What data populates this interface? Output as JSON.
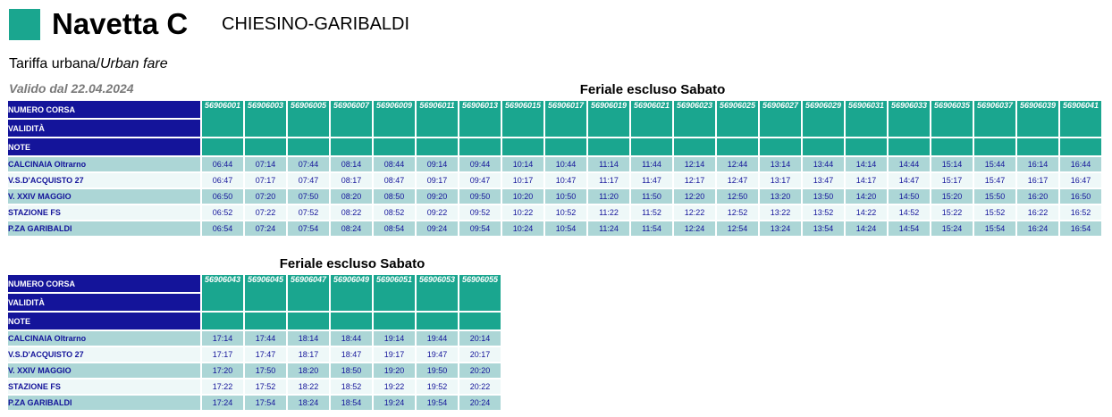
{
  "header": {
    "title": "Navetta C",
    "route": "CHIESINO-GARIBALDI",
    "fare_it": "Tariffa urbana/",
    "fare_en": "Urban fare",
    "validity": "Valido dal 22.04.2024",
    "logo_color": "#1aa68f"
  },
  "labels": {
    "trip_number": "NUMERO CORSA",
    "validity": "VALIDITÀ",
    "notes": "NOTE"
  },
  "colors": {
    "header_blue": "#14149a",
    "teal": "#1aa68f",
    "row_a": "#acd6d6",
    "row_b": "#eef8f8"
  },
  "tables": [
    {
      "day_type": "Feriale escluso Sabato",
      "trips": [
        "56906001",
        "56906003",
        "56906005",
        "56906007",
        "56906009",
        "56906011",
        "56906013",
        "56906015",
        "56906017",
        "56906019",
        "56906021",
        "56906023",
        "56906025",
        "56906027",
        "56906029",
        "56906031",
        "56906033",
        "56906035",
        "56906037",
        "56906039",
        "56906041"
      ],
      "stops": [
        {
          "name": "CALCINAIA Oltrarno",
          "times": [
            "06:44",
            "07:14",
            "07:44",
            "08:14",
            "08:44",
            "09:14",
            "09:44",
            "10:14",
            "10:44",
            "11:14",
            "11:44",
            "12:14",
            "12:44",
            "13:14",
            "13:44",
            "14:14",
            "14:44",
            "15:14",
            "15:44",
            "16:14",
            "16:44"
          ]
        },
        {
          "name": "V.S.D'ACQUISTO 27",
          "times": [
            "06:47",
            "07:17",
            "07:47",
            "08:17",
            "08:47",
            "09:17",
            "09:47",
            "10:17",
            "10:47",
            "11:17",
            "11:47",
            "12:17",
            "12:47",
            "13:17",
            "13:47",
            "14:17",
            "14:47",
            "15:17",
            "15:47",
            "16:17",
            "16:47"
          ]
        },
        {
          "name": "V. XXIV MAGGIO",
          "times": [
            "06:50",
            "07:20",
            "07:50",
            "08:20",
            "08:50",
            "09:20",
            "09:50",
            "10:20",
            "10:50",
            "11:20",
            "11:50",
            "12:20",
            "12:50",
            "13:20",
            "13:50",
            "14:20",
            "14:50",
            "15:20",
            "15:50",
            "16:20",
            "16:50"
          ]
        },
        {
          "name": "STAZIONE FS",
          "times": [
            "06:52",
            "07:22",
            "07:52",
            "08:22",
            "08:52",
            "09:22",
            "09:52",
            "10:22",
            "10:52",
            "11:22",
            "11:52",
            "12:22",
            "12:52",
            "13:22",
            "13:52",
            "14:22",
            "14:52",
            "15:22",
            "15:52",
            "16:22",
            "16:52"
          ]
        },
        {
          "name": "P.ZA GARIBALDI",
          "times": [
            "06:54",
            "07:24",
            "07:54",
            "08:24",
            "08:54",
            "09:24",
            "09:54",
            "10:24",
            "10:54",
            "11:24",
            "11:54",
            "12:24",
            "12:54",
            "13:24",
            "13:54",
            "14:24",
            "14:54",
            "15:24",
            "15:54",
            "16:24",
            "16:54"
          ]
        }
      ]
    },
    {
      "day_type": "Feriale escluso Sabato",
      "trips": [
        "56906043",
        "56906045",
        "56906047",
        "56906049",
        "56906051",
        "56906053",
        "56906055"
      ],
      "stops": [
        {
          "name": "CALCINAIA Oltrarno",
          "times": [
            "17:14",
            "17:44",
            "18:14",
            "18:44",
            "19:14",
            "19:44",
            "20:14"
          ]
        },
        {
          "name": "V.S.D'ACQUISTO 27",
          "times": [
            "17:17",
            "17:47",
            "18:17",
            "18:47",
            "19:17",
            "19:47",
            "20:17"
          ]
        },
        {
          "name": "V. XXIV MAGGIO",
          "times": [
            "17:20",
            "17:50",
            "18:20",
            "18:50",
            "19:20",
            "19:50",
            "20:20"
          ]
        },
        {
          "name": "STAZIONE FS",
          "times": [
            "17:22",
            "17:52",
            "18:22",
            "18:52",
            "19:22",
            "19:52",
            "20:22"
          ]
        },
        {
          "name": "P.ZA GARIBALDI",
          "times": [
            "17:24",
            "17:54",
            "18:24",
            "18:54",
            "19:24",
            "19:54",
            "20:24"
          ]
        }
      ]
    }
  ]
}
